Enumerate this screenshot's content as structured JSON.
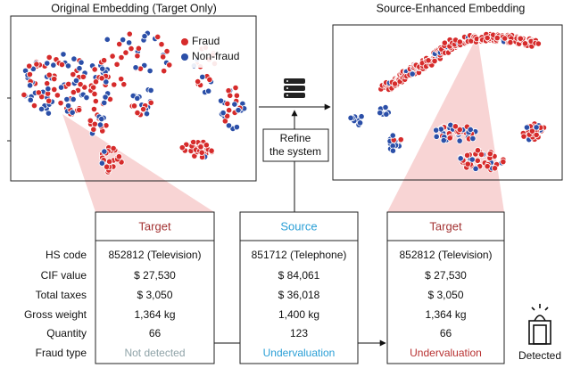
{
  "panels": [
    {
      "title": "Original Embedding (Target Only)"
    },
    {
      "title": "Source-Enhanced Embedding"
    }
  ],
  "legend": [
    "Fraud",
    "Non-fraud"
  ],
  "refine": [
    "Refine",
    "the system"
  ],
  "row_labels": [
    "HS code",
    "CIF value",
    "Total taxes",
    "Gross weight",
    "Quantity",
    "Fraud type"
  ],
  "tables": [
    {
      "header": "Target",
      "cells": [
        "852812 (Television)",
        "$ 27,530",
        "$ 3,050",
        "1,364 kg",
        "66",
        "Not detected"
      ]
    },
    {
      "header": "Source",
      "cells": [
        "851712 (Telephone)",
        "$ 84,061",
        "$ 36,018",
        "1,400 kg",
        "123",
        "Undervaluation"
      ]
    },
    {
      "header": "Target",
      "cells": [
        "852812 (Television)",
        "$ 27,530",
        "$ 3,050",
        "1,364 kg",
        "66",
        "Undervaluation"
      ]
    }
  ],
  "detected": "Detected"
}
